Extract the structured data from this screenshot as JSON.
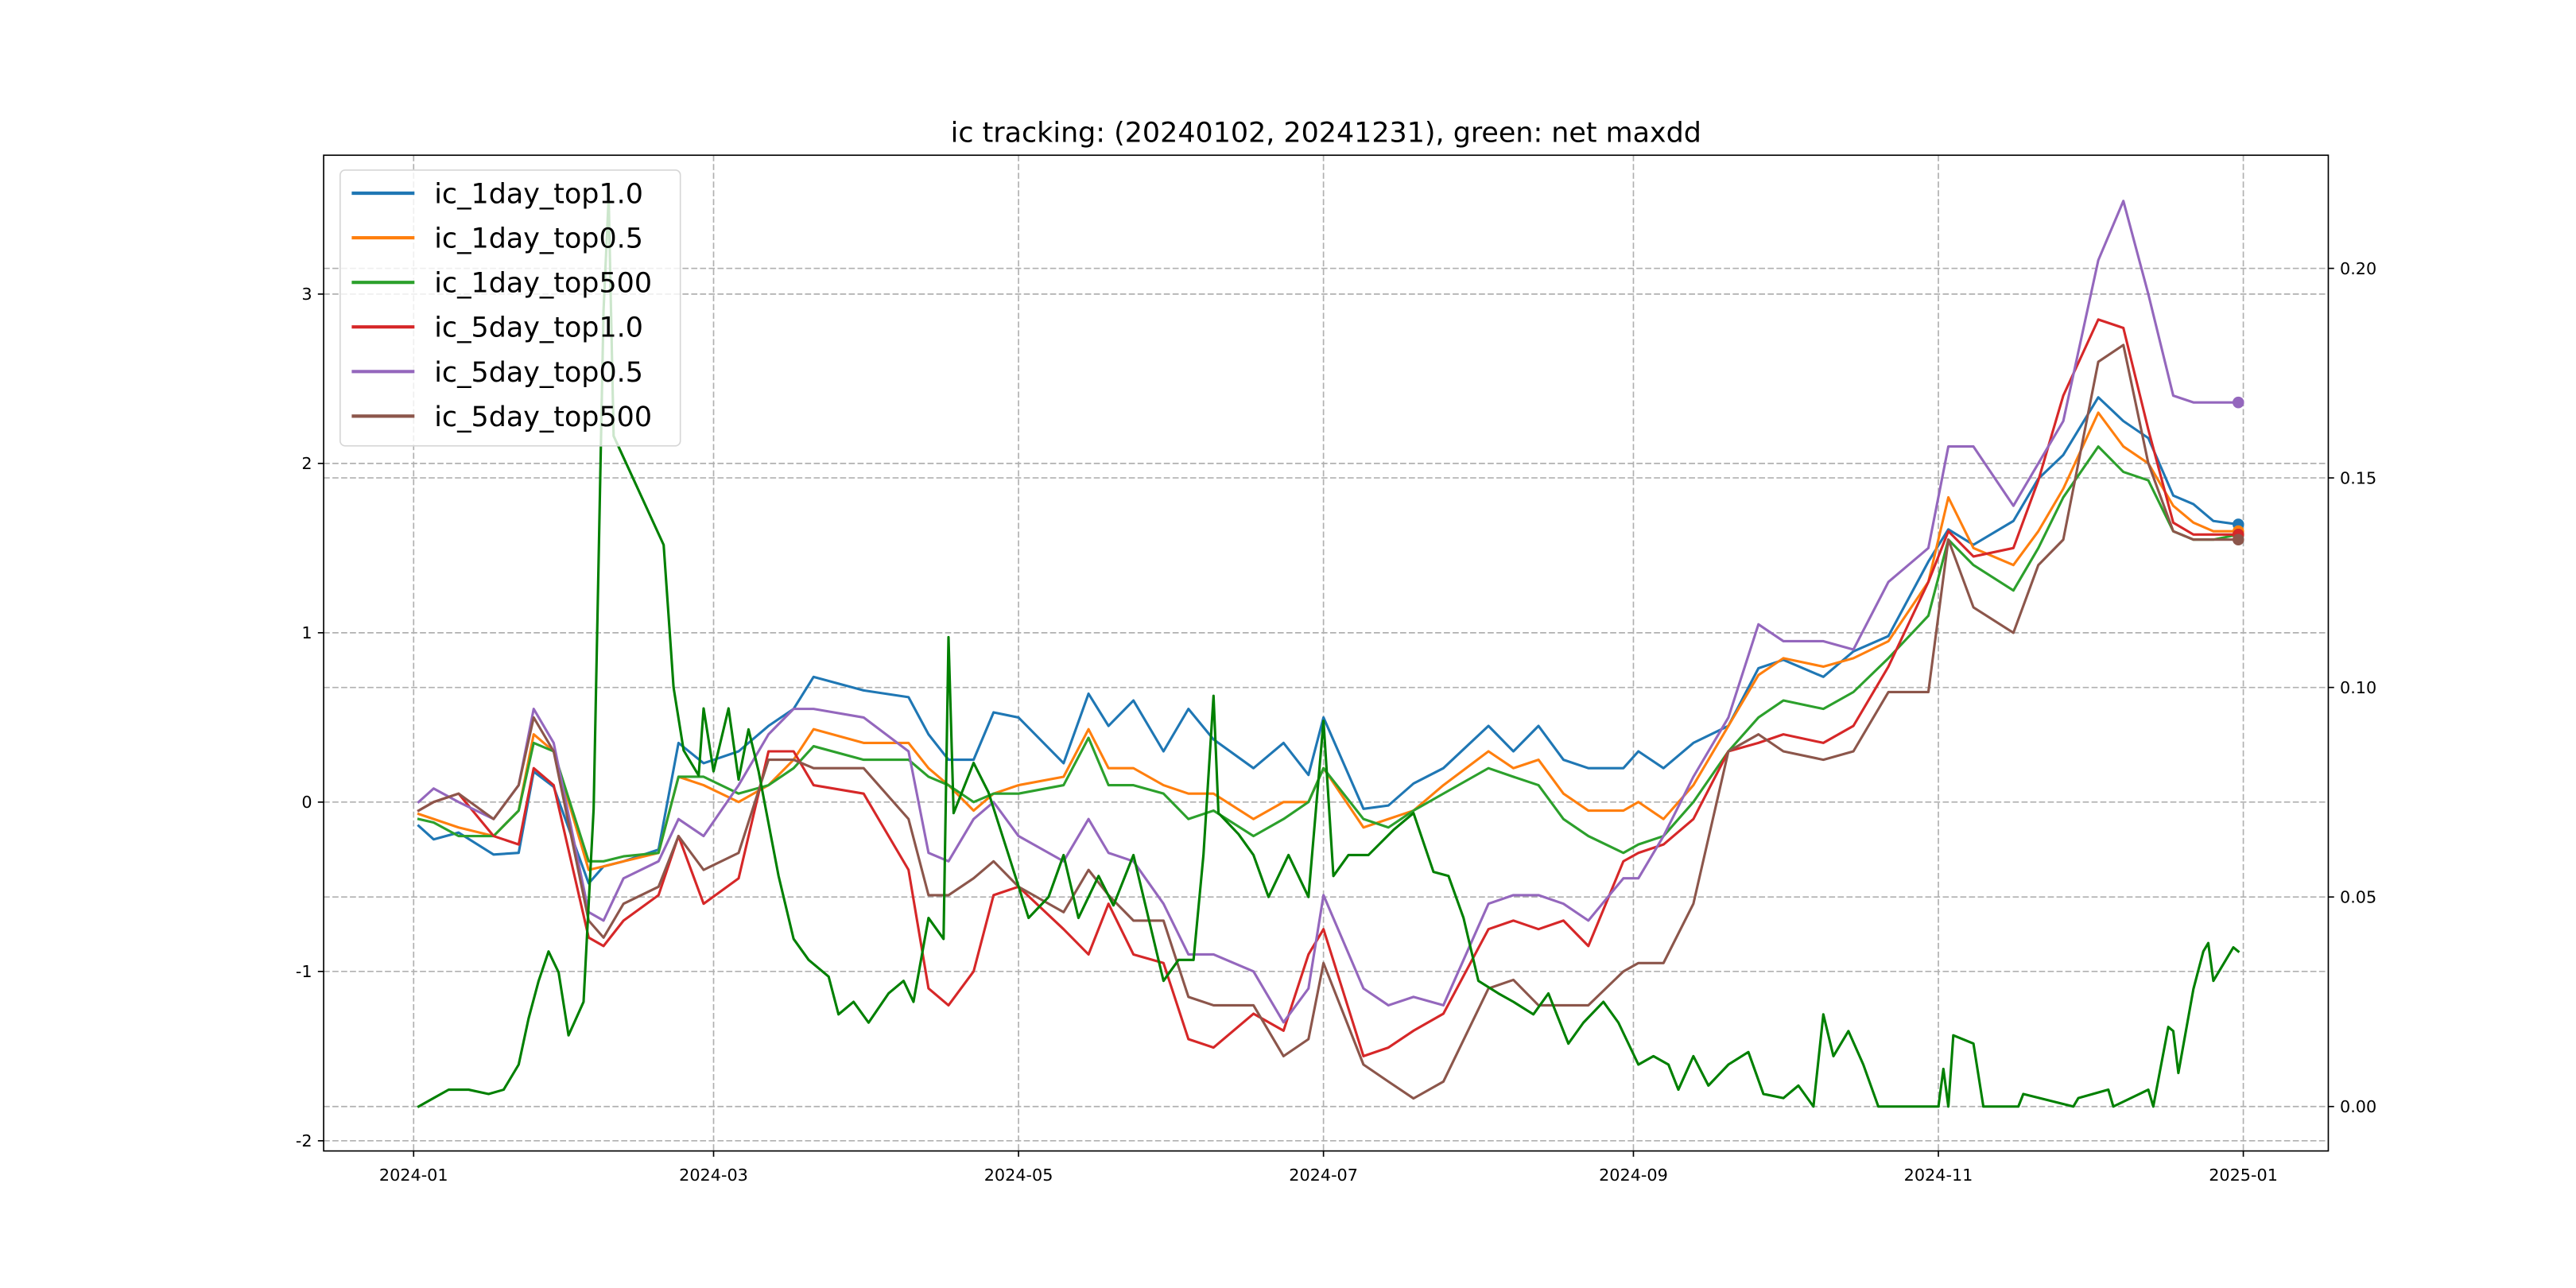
{
  "chart_data": {
    "type": "line",
    "title": "ic tracking: (20240102, 20241231), green: net maxdd",
    "xlabel": "",
    "ylabel": "",
    "xlim": [
      "2023-12-14",
      "2025-01-18"
    ],
    "ylim_left": [
      -2.06,
      3.82
    ],
    "ylim_right": [
      -0.0106,
      0.227
    ],
    "grid": true,
    "legend_placement": "upper-left",
    "x_ticks": [
      "2024-01",
      "2024-03",
      "2024-05",
      "2024-07",
      "2024-09",
      "2024-11",
      "2025-01"
    ],
    "y_ticks_left": [
      "-2",
      "-1",
      "0",
      "1",
      "2",
      "3"
    ],
    "y_ticks_right": [
      "0.00",
      "0.05",
      "0.10",
      "0.15",
      "0.20"
    ],
    "dates": [
      "2024-01-02",
      "2024-01-05",
      "2024-01-10",
      "2024-01-17",
      "2024-01-22",
      "2024-01-25",
      "2024-01-29",
      "2024-02-05",
      "2024-02-08",
      "2024-02-12",
      "2024-02-19",
      "2024-02-23",
      "2024-02-28",
      "2024-03-06",
      "2024-03-12",
      "2024-03-17",
      "2024-03-21",
      "2024-03-31",
      "2024-04-09",
      "2024-04-13",
      "2024-04-17",
      "2024-04-22",
      "2024-04-26",
      "2024-05-01",
      "2024-05-10",
      "2024-05-15",
      "2024-05-19",
      "2024-05-24",
      "2024-05-30",
      "2024-06-04",
      "2024-06-09",
      "2024-06-17",
      "2024-06-23",
      "2024-06-28",
      "2024-07-01",
      "2024-07-09",
      "2024-07-14",
      "2024-07-19",
      "2024-07-25",
      "2024-08-03",
      "2024-08-08",
      "2024-08-13",
      "2024-08-18",
      "2024-08-23",
      "2024-08-30",
      "2024-09-02",
      "2024-09-07",
      "2024-09-13",
      "2024-09-20",
      "2024-09-26",
      "2024-10-01",
      "2024-10-09",
      "2024-10-15",
      "2024-10-22",
      "2024-10-30",
      "2024-11-03",
      "2024-11-08",
      "2024-11-16",
      "2024-11-21",
      "2024-11-26",
      "2024-12-03",
      "2024-12-08",
      "2024-12-13",
      "2024-12-18",
      "2024-12-22",
      "2024-12-26",
      "2024-12-31"
    ],
    "series": [
      {
        "name": "ic_1day_top1.0",
        "color": "#1f77b4",
        "axis": "left",
        "end_marker": true,
        "values": [
          -0.14,
          -0.22,
          -0.18,
          -0.31,
          -0.3,
          0.18,
          0.09,
          -0.48,
          -0.38,
          -0.35,
          -0.28,
          0.35,
          0.23,
          0.3,
          0.45,
          0.55,
          0.74,
          0.66,
          0.62,
          0.4,
          0.25,
          0.25,
          0.53,
          0.5,
          0.23,
          0.64,
          0.45,
          0.6,
          0.3,
          0.55,
          0.37,
          0.2,
          0.35,
          0.16,
          0.5,
          -0.04,
          -0.02,
          0.11,
          0.2,
          0.45,
          0.3,
          0.45,
          0.25,
          0.2,
          0.2,
          0.3,
          0.2,
          0.35,
          0.45,
          0.79,
          0.84,
          0.74,
          0.89,
          0.98,
          1.42,
          1.61,
          1.52,
          1.66,
          1.91,
          2.05,
          2.39,
          2.25,
          2.15,
          1.81,
          1.76,
          1.66,
          1.64
        ]
      },
      {
        "name": "ic_1day_top0.5",
        "color": "#ff7f0e",
        "axis": "left",
        "end_marker": true,
        "values": [
          -0.07,
          -0.1,
          -0.15,
          -0.2,
          -0.05,
          0.4,
          0.3,
          -0.4,
          -0.38,
          -0.35,
          -0.3,
          0.15,
          0.1,
          0.0,
          0.1,
          0.25,
          0.43,
          0.35,
          0.35,
          0.2,
          0.1,
          -0.05,
          0.05,
          0.1,
          0.15,
          0.43,
          0.2,
          0.2,
          0.1,
          0.05,
          0.05,
          -0.1,
          0.0,
          0.0,
          0.2,
          -0.15,
          -0.1,
          -0.05,
          0.1,
          0.3,
          0.2,
          0.25,
          0.05,
          -0.05,
          -0.05,
          0.0,
          -0.1,
          0.1,
          0.45,
          0.75,
          0.85,
          0.8,
          0.85,
          0.95,
          1.3,
          1.8,
          1.5,
          1.4,
          1.6,
          1.85,
          2.3,
          2.1,
          2.0,
          1.75,
          1.65,
          1.6,
          1.6
        ]
      },
      {
        "name": "ic_1day_top500",
        "color": "#2ca02c",
        "axis": "left",
        "end_marker": true,
        "values": [
          -0.1,
          -0.12,
          -0.2,
          -0.2,
          -0.05,
          0.35,
          0.3,
          -0.35,
          -0.35,
          -0.32,
          -0.3,
          0.15,
          0.15,
          0.05,
          0.1,
          0.2,
          0.33,
          0.25,
          0.25,
          0.15,
          0.1,
          0.0,
          0.05,
          0.05,
          0.1,
          0.38,
          0.1,
          0.1,
          0.05,
          -0.1,
          -0.05,
          -0.2,
          -0.1,
          0.0,
          0.2,
          -0.1,
          -0.15,
          -0.05,
          0.05,
          0.2,
          0.15,
          0.1,
          -0.1,
          -0.2,
          -0.3,
          -0.25,
          -0.2,
          0.0,
          0.3,
          0.5,
          0.6,
          0.55,
          0.65,
          0.85,
          1.1,
          1.55,
          1.4,
          1.25,
          1.5,
          1.8,
          2.1,
          1.95,
          1.9,
          1.6,
          1.55,
          1.55,
          1.58
        ]
      },
      {
        "name": "ic_5day_top1.0",
        "color": "#d62728",
        "axis": "left",
        "end_marker": true,
        "values": [
          -0.05,
          0.0,
          0.05,
          -0.2,
          -0.25,
          0.2,
          0.1,
          -0.8,
          -0.85,
          -0.7,
          -0.55,
          -0.2,
          -0.6,
          -0.45,
          0.3,
          0.3,
          0.1,
          0.05,
          -0.4,
          -1.1,
          -1.2,
          -1.0,
          -0.55,
          -0.5,
          -0.75,
          -0.9,
          -0.6,
          -0.9,
          -0.95,
          -1.4,
          -1.45,
          -1.25,
          -1.35,
          -0.9,
          -0.75,
          -1.5,
          -1.45,
          -1.35,
          -1.25,
          -0.75,
          -0.7,
          -0.75,
          -0.7,
          -0.85,
          -0.35,
          -0.3,
          -0.25,
          -0.1,
          0.3,
          0.35,
          0.4,
          0.35,
          0.45,
          0.8,
          1.3,
          1.6,
          1.45,
          1.5,
          1.9,
          2.4,
          2.85,
          2.8,
          2.2,
          1.65,
          1.58,
          1.58,
          1.58
        ]
      },
      {
        "name": "ic_5day_top0.5",
        "color": "#9467bd",
        "axis": "left",
        "end_marker": true,
        "values": [
          0.0,
          0.08,
          0.0,
          -0.1,
          0.1,
          0.55,
          0.35,
          -0.65,
          -0.7,
          -0.45,
          -0.35,
          -0.1,
          -0.2,
          0.1,
          0.4,
          0.55,
          0.55,
          0.5,
          0.3,
          -0.3,
          -0.35,
          -0.1,
          0.0,
          -0.2,
          -0.35,
          -0.1,
          -0.3,
          -0.35,
          -0.6,
          -0.9,
          -0.9,
          -1.0,
          -1.3,
          -1.1,
          -0.55,
          -1.1,
          -1.2,
          -1.15,
          -1.2,
          -0.6,
          -0.55,
          -0.55,
          -0.6,
          -0.7,
          -0.45,
          -0.45,
          -0.2,
          0.15,
          0.5,
          1.05,
          0.95,
          0.95,
          0.9,
          1.3,
          1.5,
          2.1,
          2.1,
          1.75,
          2.0,
          2.25,
          3.2,
          3.55,
          3.0,
          2.4,
          2.36,
          2.36,
          2.36
        ]
      },
      {
        "name": "ic_5day_top500",
        "color": "#8c564b",
        "axis": "left",
        "end_marker": true,
        "values": [
          -0.05,
          0.0,
          0.05,
          -0.1,
          0.1,
          0.5,
          0.3,
          -0.7,
          -0.8,
          -0.6,
          -0.5,
          -0.2,
          -0.4,
          -0.3,
          0.25,
          0.25,
          0.2,
          0.2,
          -0.1,
          -0.55,
          -0.55,
          -0.45,
          -0.35,
          -0.5,
          -0.65,
          -0.4,
          -0.55,
          -0.7,
          -0.7,
          -1.15,
          -1.2,
          -1.2,
          -1.5,
          -1.4,
          -0.95,
          -1.55,
          -1.65,
          -1.75,
          -1.65,
          -1.1,
          -1.05,
          -1.2,
          -1.2,
          -1.2,
          -1.0,
          -0.95,
          -0.95,
          -0.6,
          0.3,
          0.4,
          0.3,
          0.25,
          0.3,
          0.65,
          0.65,
          1.55,
          1.15,
          1.0,
          1.4,
          1.55,
          2.6,
          2.7,
          2.0,
          1.6,
          1.55,
          1.55,
          1.55
        ]
      }
    ],
    "net_maxdd": {
      "name": "net maxdd",
      "color": "#008000",
      "axis": "right",
      "dates": [
        "2024-01-02",
        "2024-01-05",
        "2024-01-08",
        "2024-01-12",
        "2024-01-16",
        "2024-01-19",
        "2024-01-22",
        "2024-01-24",
        "2024-01-26",
        "2024-01-28",
        "2024-01-30",
        "2024-02-01",
        "2024-02-04",
        "2024-02-06",
        "2024-02-07",
        "2024-02-08",
        "2024-02-09",
        "2024-02-10",
        "2024-02-20",
        "2024-02-22",
        "2024-02-24",
        "2024-02-27",
        "2024-02-28",
        "2024-03-01",
        "2024-03-04",
        "2024-03-06",
        "2024-03-08",
        "2024-03-10",
        "2024-03-14",
        "2024-03-17",
        "2024-03-20",
        "2024-03-24",
        "2024-03-26",
        "2024-03-29",
        "2024-04-01",
        "2024-04-05",
        "2024-04-08",
        "2024-04-10",
        "2024-04-13",
        "2024-04-16",
        "2024-04-17",
        "2024-04-18",
        "2024-04-22",
        "2024-04-25",
        "2024-04-29",
        "2024-05-03",
        "2024-05-07",
        "2024-05-10",
        "2024-05-13",
        "2024-05-17",
        "2024-05-20",
        "2024-05-24",
        "2024-05-27",
        "2024-05-30",
        "2024-06-02",
        "2024-06-05",
        "2024-06-07",
        "2024-06-09",
        "2024-06-10",
        "2024-06-14",
        "2024-06-17",
        "2024-06-20",
        "2024-06-24",
        "2024-06-28",
        "2024-07-01",
        "2024-07-03",
        "2024-07-06",
        "2024-07-10",
        "2024-07-15",
        "2024-07-19",
        "2024-07-23",
        "2024-07-26",
        "2024-07-29",
        "2024-08-01",
        "2024-08-05",
        "2024-08-08",
        "2024-08-12",
        "2024-08-15",
        "2024-08-19",
        "2024-08-22",
        "2024-08-26",
        "2024-08-29",
        "2024-09-02",
        "2024-09-05",
        "2024-09-08",
        "2024-09-10",
        "2024-09-13",
        "2024-09-16",
        "2024-09-20",
        "2024-09-24",
        "2024-09-27",
        "2024-10-01",
        "2024-10-04",
        "2024-10-07",
        "2024-10-09",
        "2024-10-11",
        "2024-10-14",
        "2024-10-17",
        "2024-10-20",
        "2024-11-01",
        "2024-11-02",
        "2024-11-03",
        "2024-11-04",
        "2024-11-08",
        "2024-11-10",
        "2024-11-17",
        "2024-11-18",
        "2024-11-28",
        "2024-11-29",
        "2024-12-05",
        "2024-12-06",
        "2024-12-13",
        "2024-12-14",
        "2024-12-17",
        "2024-12-18",
        "2024-12-19",
        "2024-12-22",
        "2024-12-24",
        "2024-12-25",
        "2024-12-26",
        "2024-12-30",
        "2024-12-31"
      ],
      "values": [
        0.0,
        0.002,
        0.004,
        0.004,
        0.003,
        0.004,
        0.01,
        0.021,
        0.03,
        0.037,
        0.032,
        0.017,
        0.025,
        0.071,
        0.13,
        0.19,
        0.217,
        0.16,
        0.134,
        0.1,
        0.085,
        0.079,
        0.095,
        0.08,
        0.095,
        0.078,
        0.09,
        0.08,
        0.055,
        0.04,
        0.035,
        0.031,
        0.022,
        0.025,
        0.02,
        0.027,
        0.03,
        0.025,
        0.045,
        0.04,
        0.112,
        0.07,
        0.082,
        0.075,
        0.06,
        0.045,
        0.05,
        0.06,
        0.045,
        0.055,
        0.048,
        0.06,
        0.045,
        0.03,
        0.035,
        0.035,
        0.06,
        0.098,
        0.07,
        0.065,
        0.06,
        0.05,
        0.06,
        0.05,
        0.092,
        0.055,
        0.06,
        0.06,
        0.066,
        0.07,
        0.056,
        0.055,
        0.045,
        0.03,
        0.027,
        0.025,
        0.022,
        0.027,
        0.015,
        0.02,
        0.025,
        0.02,
        0.01,
        0.012,
        0.01,
        0.004,
        0.012,
        0.005,
        0.01,
        0.013,
        0.003,
        0.002,
        0.005,
        0.0,
        0.022,
        0.012,
        0.018,
        0.01,
        0.0,
        0.0,
        0.009,
        0.0,
        0.017,
        0.015,
        0.0,
        0.0,
        0.003,
        0.0,
        0.002,
        0.004,
        0.0,
        0.004,
        0.0,
        0.019,
        0.018,
        0.008,
        0.028,
        0.037,
        0.039,
        0.03,
        0.038,
        0.037
      ]
    }
  }
}
